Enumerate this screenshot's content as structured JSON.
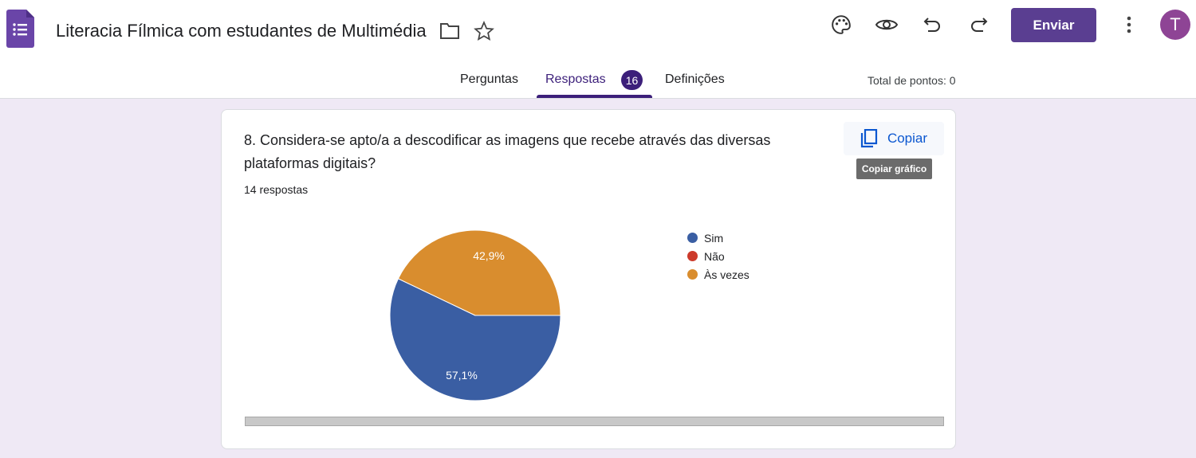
{
  "header": {
    "title": "Literacia Fílmica com estudantes de Multimédia",
    "send_label": "Enviar",
    "avatar_initial": "T",
    "brand_color": "#5a3e91"
  },
  "tabs": [
    {
      "label": "Perguntas"
    },
    {
      "label": "Respostas",
      "badge": "16",
      "active": true
    },
    {
      "label": "Definições"
    }
  ],
  "total_points": "Total de pontos: 0",
  "question": {
    "title": "8. Considera-se apto/a a descodificar as imagens que recebe através das diversas plataformas digitais?",
    "responses": "14 respostas",
    "copy_label": "Copiar",
    "copy_tooltip": "Copiar gráfico"
  },
  "chart_data": {
    "type": "pie",
    "categories": [
      "Sim",
      "Não",
      "Às vezes"
    ],
    "values": [
      57.1,
      0,
      42.9
    ],
    "labels": [
      "57,1%",
      "",
      "42,9%"
    ],
    "colors": [
      "#3a5ea3",
      "#cc3a2b",
      "#d98d2e"
    ],
    "legend_position": "right"
  }
}
